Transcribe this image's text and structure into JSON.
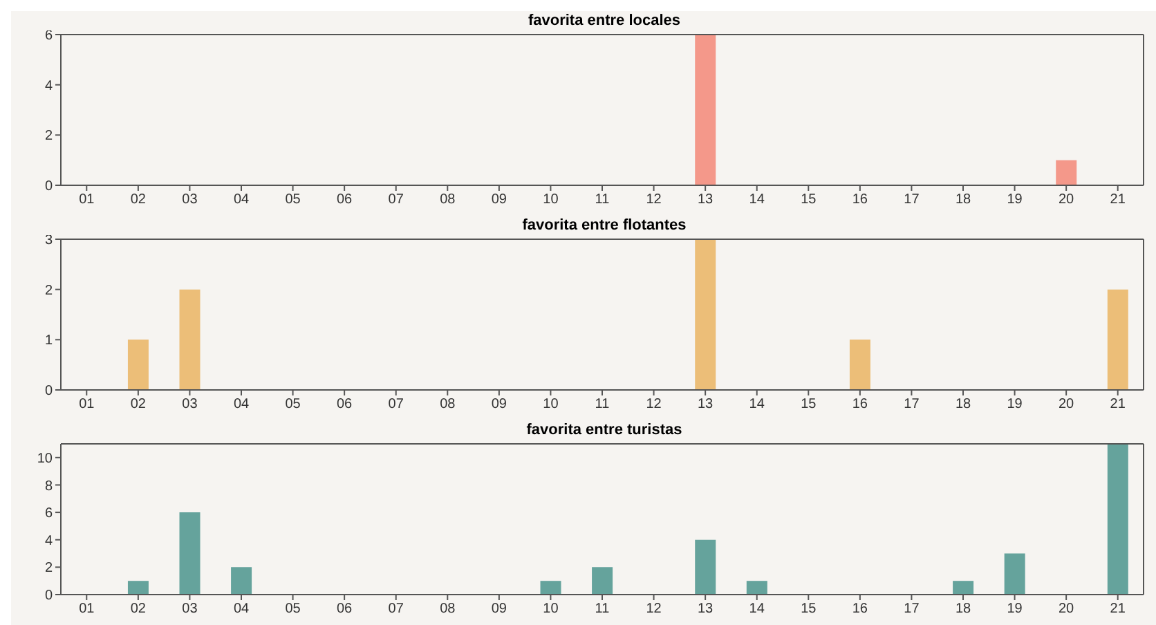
{
  "chart_data": [
    {
      "type": "bar",
      "title": "favorita entre locales",
      "categories": [
        "01",
        "02",
        "03",
        "04",
        "05",
        "06",
        "07",
        "08",
        "09",
        "10",
        "11",
        "12",
        "13",
        "14",
        "15",
        "16",
        "17",
        "18",
        "19",
        "20",
        "21"
      ],
      "series": [
        {
          "color": "#f4988a",
          "values": [
            0,
            0,
            0,
            0,
            0,
            0,
            0,
            0,
            0,
            0,
            0,
            0,
            6,
            0,
            0,
            0,
            0,
            0,
            0,
            1,
            0
          ]
        }
      ],
      "ylim": [
        0,
        6
      ],
      "yticks": [
        0,
        2,
        4,
        6
      ],
      "grid": false,
      "legend": false
    },
    {
      "type": "bar",
      "title": "favorita entre flotantes",
      "categories": [
        "01",
        "02",
        "03",
        "04",
        "05",
        "06",
        "07",
        "08",
        "09",
        "10",
        "11",
        "12",
        "13",
        "14",
        "15",
        "16",
        "17",
        "18",
        "19",
        "20",
        "21"
      ],
      "series": [
        {
          "color": "#ecbe78",
          "values": [
            0,
            1,
            2,
            0,
            0,
            0,
            0,
            0,
            0,
            0,
            0,
            0,
            3,
            0,
            0,
            1,
            0,
            0,
            0,
            0,
            2
          ]
        }
      ],
      "ylim": [
        0,
        3
      ],
      "yticks": [
        0,
        1,
        2,
        3
      ],
      "grid": false,
      "legend": false
    },
    {
      "type": "bar",
      "title": "favorita entre turistas",
      "categories": [
        "01",
        "02",
        "03",
        "04",
        "05",
        "06",
        "07",
        "08",
        "09",
        "10",
        "11",
        "12",
        "13",
        "14",
        "15",
        "16",
        "17",
        "18",
        "19",
        "20",
        "21"
      ],
      "series": [
        {
          "color": "#65a39c",
          "values": [
            0,
            1,
            6,
            2,
            0,
            0,
            0,
            0,
            0,
            1,
            2,
            0,
            4,
            1,
            0,
            0,
            0,
            1,
            3,
            0,
            11
          ]
        }
      ],
      "ylim": [
        0,
        11
      ],
      "yticks": [
        0,
        2,
        4,
        6,
        8,
        10
      ],
      "grid": false,
      "legend": false
    }
  ]
}
